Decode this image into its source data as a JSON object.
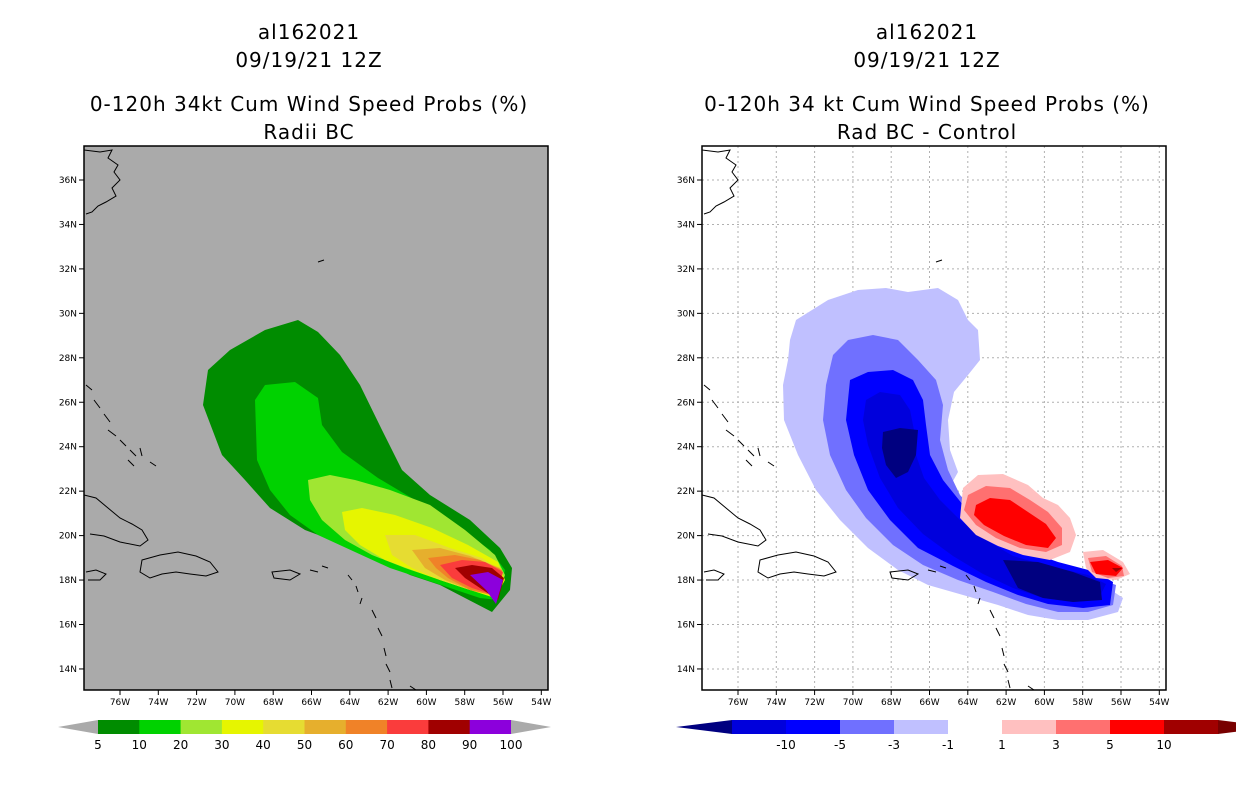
{
  "left": {
    "title_line1": "al162021",
    "title_line2": "09/19/21 12Z",
    "title_line3": "0-120h 34kt Cum Wind Speed Probs (%)",
    "title_line4": "Radii BC",
    "lat_labels": [
      "36N",
      "34N",
      "32N",
      "30N",
      "28N",
      "26N",
      "24N",
      "22N",
      "20N",
      "18N",
      "16N",
      "14N"
    ],
    "lon_labels": [
      "76W",
      "74W",
      "72W",
      "70W",
      "68W",
      "66W",
      "64W",
      "62W",
      "60W",
      "58W",
      "56W",
      "54W"
    ],
    "colorbar": {
      "labels": [
        "5",
        "10",
        "20",
        "30",
        "40",
        "50",
        "60",
        "70",
        "80",
        "90",
        "100"
      ],
      "colors": [
        "#008c00",
        "#00d200",
        "#a0e632",
        "#e6f500",
        "#e6dc32",
        "#e6af2d",
        "#f08228",
        "#fa3c3c",
        "#a00000",
        "#8c00dc"
      ],
      "end_color": "#aaaaaa"
    },
    "background_color": "#aaaaaa"
  },
  "right": {
    "title_line1": "al162021",
    "title_line2": "09/19/21 12Z",
    "title_line3": "0-120h 34 kt Cum Wind Speed Probs (%)",
    "title_line4": "Rad BC - Control",
    "lat_labels": [
      "36N",
      "34N",
      "32N",
      "30N",
      "28N",
      "26N",
      "24N",
      "22N",
      "20N",
      "18N",
      "16N",
      "14N"
    ],
    "lon_labels": [
      "76W",
      "74W",
      "72W",
      "70W",
      "68W",
      "66W",
      "64W",
      "62W",
      "60W",
      "58W",
      "56W",
      "54W"
    ],
    "colorbar": {
      "labels": [
        "-10",
        "-5",
        "-3",
        "-1",
        "1",
        "3",
        "5",
        "10"
      ],
      "colors": [
        "#0000dc",
        "#0000ff",
        "#7070ff",
        "#c0c0ff",
        "#ffffff",
        "#ffc0c0",
        "#ff7070",
        "#ff0000",
        "#a00000"
      ],
      "low_end_color": "#000080",
      "high_end_color": "#780000"
    },
    "background_color": "#ffffff"
  }
}
